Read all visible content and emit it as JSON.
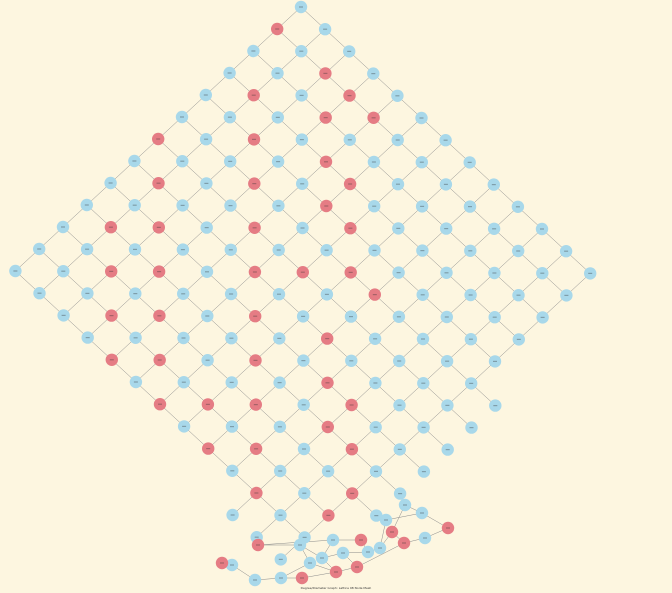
{
  "graph": {
    "caption": "Degree/Diameter Graph: Lattice 98 Node Mesh",
    "colors": {
      "background": "#fdf6e0",
      "blue_node": "#a8d8ea",
      "red_node": "#e57c84",
      "edge": "#8a8a8a",
      "label": "#333333"
    },
    "node_label_note": "Node labels are numeric IDs rendered too small to read in the screenshot",
    "diagonal_lattice": {
      "rows": 13,
      "cols": 13,
      "red_nodes": [
        [
          0,
          1
        ],
        [
          2,
          1
        ],
        [
          3,
          1
        ],
        [
          3,
          2
        ],
        [
          4,
          1
        ],
        [
          4,
          3
        ],
        [
          5,
          3
        ],
        [
          5,
          4
        ],
        [
          6,
          4
        ],
        [
          6,
          6
        ],
        [
          7,
          5
        ],
        [
          8,
          5
        ],
        [
          8,
          7
        ],
        [
          9,
          8
        ],
        [
          10,
          8
        ],
        [
          10,
          9
        ],
        [
          11,
          9
        ],
        [
          12,
          10
        ],
        [
          12,
          11
        ],
        [
          1,
          3
        ],
        [
          2,
          4
        ],
        [
          3,
          5
        ],
        [
          4,
          6
        ],
        [
          5,
          7
        ],
        [
          6,
          8
        ],
        [
          7,
          9
        ],
        [
          8,
          10
        ],
        [
          9,
          11
        ],
        [
          10,
          12
        ],
        [
          0,
          6
        ],
        [
          1,
          7
        ],
        [
          2,
          8
        ],
        [
          3,
          9
        ],
        [
          4,
          10
        ],
        [
          5,
          11
        ],
        [
          6,
          12
        ],
        [
          1,
          9
        ],
        [
          2,
          10
        ],
        [
          3,
          11
        ],
        [
          4,
          12
        ],
        [
          7,
          11
        ],
        [
          8,
          12
        ]
      ]
    },
    "outer_cluster": {
      "red_nodes": [
        2,
        5,
        8,
        9,
        11,
        14,
        17,
        18,
        20
      ]
    }
  }
}
